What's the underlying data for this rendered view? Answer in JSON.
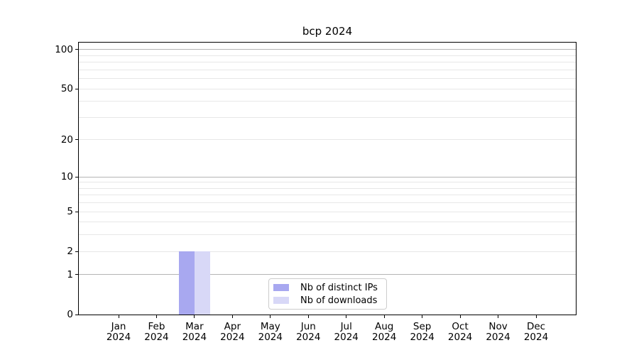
{
  "chart_data": {
    "type": "bar",
    "title": "bcp 2024",
    "categories": [
      "Jan\n2024",
      "Feb\n2024",
      "Mar\n2024",
      "Apr\n2024",
      "May\n2024",
      "Jun\n2024",
      "Jul\n2024",
      "Aug\n2024",
      "Sep\n2024",
      "Oct\n2024",
      "Nov\n2024",
      "Dec\n2024"
    ],
    "series": [
      {
        "name": "Nb of distinct IPs",
        "color": "#a8a8f0",
        "values": [
          0,
          0,
          2,
          0,
          0,
          0,
          0,
          0,
          0,
          0,
          0,
          0
        ]
      },
      {
        "name": "Nb of downloads",
        "color": "#d8d8f7",
        "values": [
          0,
          0,
          2,
          0,
          0,
          0,
          0,
          0,
          0,
          0,
          0,
          0
        ]
      }
    ],
    "xlabel": "",
    "ylabel": "",
    "yscale": "log1p",
    "ylim": [
      0,
      113
    ],
    "yticks": [
      0,
      1,
      2,
      5,
      10,
      20,
      50,
      100
    ],
    "major_gridlines": [
      1,
      10,
      100
    ],
    "minor_gridlines": [
      2,
      3,
      4,
      5,
      6,
      7,
      8,
      9,
      20,
      30,
      40,
      50,
      60,
      70,
      80,
      90
    ],
    "grid": true,
    "legend_position": "lower-center",
    "colors": {
      "major_grid": "#b5b5b5",
      "minor_grid": "#e7e7e7",
      "spine": "#000000",
      "text": "#000000",
      "legend_border": "#cccccc"
    }
  }
}
